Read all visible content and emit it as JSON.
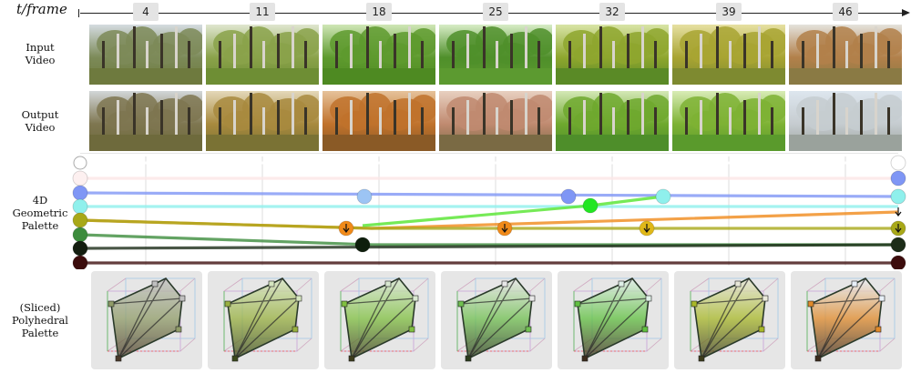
{
  "axis": {
    "label": "t/frame"
  },
  "frames": [
    "4",
    "11",
    "18",
    "25",
    "32",
    "39",
    "46"
  ],
  "rows": {
    "input": [
      "Input",
      "Video"
    ],
    "output": [
      "Output",
      "Video"
    ],
    "palette": [
      "4D",
      "Geometric",
      "Palette"
    ],
    "poly": [
      "(Sliced)",
      "Polyhedral",
      "Palette"
    ]
  },
  "input_frames": [
    {
      "sky": "#d4dbe0",
      "leaf": "#7c8a58",
      "ground": "#6e7a3e"
    },
    {
      "sky": "#dfe6cf",
      "leaf": "#8aa24a",
      "ground": "#6e8e34"
    },
    {
      "sky": "#cfe6b6",
      "leaf": "#5e9a2e",
      "ground": "#4e8a22"
    },
    {
      "sky": "#d7ecc6",
      "leaf": "#4f8f2a",
      "ground": "#5c9a30"
    },
    {
      "sky": "#d8e4a6",
      "leaf": "#8ea62e",
      "ground": "#5a8a26"
    },
    {
      "sky": "#e6e0a2",
      "leaf": "#a8a432",
      "ground": "#7e8a30"
    },
    {
      "sky": "#e4e2dc",
      "leaf": "#b2804a",
      "ground": "#8a7a44"
    }
  ],
  "output_frames": [
    {
      "sky": "#d2d6d8",
      "leaf": "#7e7650",
      "ground": "#6e6a3c"
    },
    {
      "sky": "#e4d8b8",
      "leaf": "#a88a3e",
      "ground": "#7a7234"
    },
    {
      "sky": "#e6c29a",
      "leaf": "#c0722c",
      "ground": "#8a5a26"
    },
    {
      "sky": "#e8d0c0",
      "leaf": "#c08a70",
      "ground": "#7a6a44"
    },
    {
      "sky": "#d4e8b6",
      "leaf": "#6ea82e",
      "ground": "#4e8e2a"
    },
    {
      "sky": "#d8ecb6",
      "leaf": "#7eb234",
      "ground": "#5a9a2c"
    },
    {
      "sky": "#dde6ee",
      "leaf": "#c6ccd0",
      "ground": "#9aa29c"
    }
  ],
  "palette_tracks": [
    {
      "color": "#ffffff"
    },
    {
      "color": "#fbe6e6"
    },
    {
      "color": "#7f96f5"
    },
    {
      "color": "#8ff0ec"
    },
    {
      "color": "#f08a1a"
    },
    {
      "color": "#a8a818"
    },
    {
      "color": "#3c8c3c"
    },
    {
      "color": "#1c2c18"
    },
    {
      "color": "#3c0c0c"
    }
  ],
  "palette_nodes": [
    {
      "color": "#fdf0f0"
    },
    {
      "color": "#7f96f5"
    },
    {
      "color": "#8ff0ec"
    },
    {
      "color": "#a8a818"
    },
    {
      "color": "#3c8c3c"
    },
    {
      "color": "#141e10"
    },
    {
      "color": "#3c0c0c"
    },
    {
      "color": "#9cc4f4"
    },
    {
      "color": "#7f96f5"
    },
    {
      "color": "#22e622"
    },
    {
      "color": "#8ff0ec"
    },
    {
      "color": "#0e1e0c"
    },
    {
      "color": "#f08a1a"
    },
    {
      "color": "#f08a1a"
    },
    {
      "color": "#e0b818"
    }
  ],
  "poly_colors": [
    {
      "top": "#c0c0c0",
      "mid": "#909c68",
      "bot": "#4a3a2a"
    },
    {
      "top": "#d6e6c0",
      "mid": "#98b040",
      "bot": "#3c4a1c"
    },
    {
      "top": "#d8e8d0",
      "mid": "#80c040",
      "bot": "#3c3c1c"
    },
    {
      "top": "#e8e8e8",
      "mid": "#70c050",
      "bot": "#2c3c1c"
    },
    {
      "top": "#e0f0e8",
      "mid": "#60c040",
      "bot": "#3c2c1c"
    },
    {
      "top": "#e8e8d8",
      "mid": "#a8b828",
      "bot": "#3c3c1c"
    },
    {
      "top": "#e8f0f8",
      "mid": "#e08a2a",
      "bot": "#3c2c1c"
    }
  ]
}
